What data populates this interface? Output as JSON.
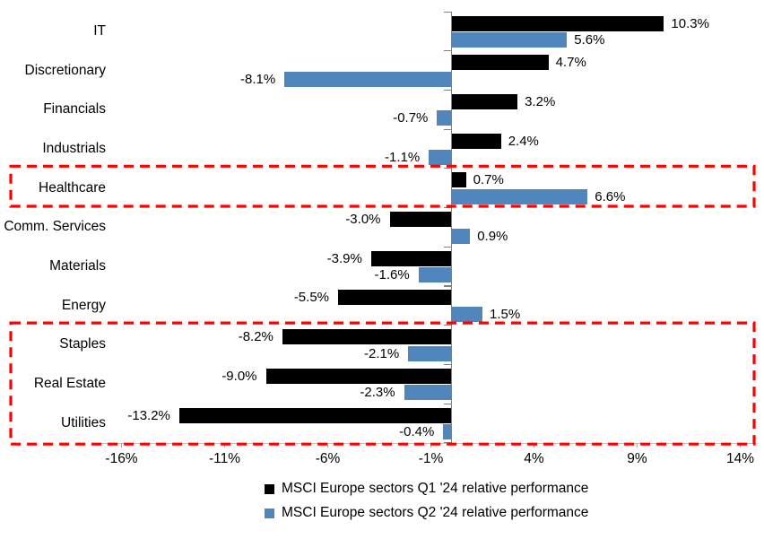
{
  "chart_data": {
    "type": "bar",
    "orientation": "horizontal",
    "title": "",
    "categories": [
      "IT",
      "Discretionary",
      "Financials",
      "Industrials",
      "Healthcare",
      "Comm. Services",
      "Materials",
      "Energy",
      "Staples",
      "Real Estate",
      "Utilities"
    ],
    "series": [
      {
        "name": "MSCI Europe sectors Q1 '24 relative performance",
        "color": "#000000",
        "values": [
          10.3,
          4.7,
          3.2,
          2.4,
          0.7,
          -3.0,
          -3.9,
          -5.5,
          -8.2,
          -9.0,
          -13.2
        ],
        "value_labels": [
          "10.3%",
          "4.7%",
          "3.2%",
          "2.4%",
          "0.7%",
          "-3.0%",
          "-3.9%",
          "-5.5%",
          "-8.2%",
          "-9.0%",
          "-13.2%"
        ]
      },
      {
        "name": "MSCI Europe sectors Q2 '24 relative performance",
        "color": "#5086BC",
        "values": [
          5.6,
          -8.1,
          -0.7,
          -1.1,
          6.6,
          0.9,
          -1.6,
          1.5,
          -2.1,
          -2.3,
          -0.4
        ],
        "value_labels": [
          "5.6%",
          "-8.1%",
          "-0.7%",
          "-1.1%",
          "6.6%",
          "0.9%",
          "-1.6%",
          "1.5%",
          "-2.1%",
          "-2.3%",
          "-0.4%"
        ]
      }
    ],
    "x_axis": {
      "tick_values": [
        -16,
        -11,
        -6,
        -1,
        4,
        9,
        14
      ],
      "tick_labels": [
        "-16%",
        "-11%",
        "-6%",
        "-1%",
        "4%",
        "9%",
        "14%"
      ],
      "range": [
        -17,
        14.8
      ]
    },
    "grid": false,
    "legend_position": "bottom",
    "legend": [
      {
        "label": "MSCI Europe sectors Q1 '24 relative performance",
        "color": "#000000"
      },
      {
        "label": "MSCI Europe sectors Q2 '24 relative performance",
        "color": "#5086BC"
      }
    ],
    "highlights": [
      {
        "name": "healthcare-highlight",
        "from_category": "Healthcare",
        "to_category": "Healthcare",
        "color": "#FF0000",
        "style": "dashed"
      },
      {
        "name": "defensive-sectors-highlight",
        "from_category": "Staples",
        "to_category": "Utilities",
        "color": "#FF0000",
        "style": "dashed"
      }
    ]
  }
}
